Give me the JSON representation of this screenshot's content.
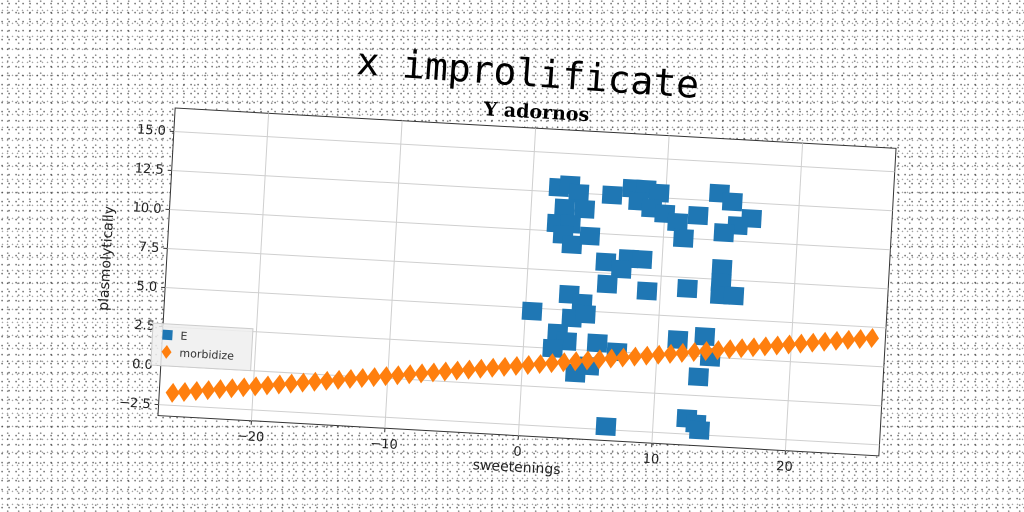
{
  "figure_title": "x improlificate",
  "chart_data": {
    "type": "scatter",
    "title": "Y adornos",
    "xlabel": "sweetenings",
    "ylabel": "plasmolytically",
    "xlim": [
      -27,
      27
    ],
    "ylim": [
      -3.2,
      16.5
    ],
    "xticks": [
      -20,
      -10,
      0,
      10,
      20
    ],
    "yticks": [
      -2.5,
      0.0,
      2.5,
      5.0,
      7.5,
      10.0,
      12.5,
      15.0
    ],
    "ytick_labels": [
      "−2.5",
      "0.0",
      "2.5",
      "5.0",
      "7.5",
      "10.0",
      "12.5",
      "15.0"
    ],
    "xtick_labels": [
      "−20",
      "−10",
      "0",
      "10",
      "20"
    ],
    "grid": true,
    "legend_position": "lower-left",
    "series": [
      {
        "name": "E",
        "marker": "square",
        "color": "#1f77b4",
        "points": [
          [
            0.5,
            4.8
          ],
          [
            2,
            12.8
          ],
          [
            2.8,
            13
          ],
          [
            3.5,
            12.5
          ],
          [
            2.5,
            11.5
          ],
          [
            4,
            11.5
          ],
          [
            2,
            10.5
          ],
          [
            3,
            10.5
          ],
          [
            2.5,
            9.8
          ],
          [
            3.2,
            9.2
          ],
          [
            4.5,
            9.8
          ],
          [
            6,
            12.5
          ],
          [
            7.5,
            13
          ],
          [
            8.5,
            13
          ],
          [
            9.5,
            12.8
          ],
          [
            8,
            12.2
          ],
          [
            9,
            11.8
          ],
          [
            10,
            11.5
          ],
          [
            11,
            11
          ],
          [
            12.5,
            11.5
          ],
          [
            11.5,
            10
          ],
          [
            14,
            13
          ],
          [
            15,
            12.5
          ],
          [
            16.5,
            11.5
          ],
          [
            15.5,
            11
          ],
          [
            14.5,
            10.5
          ],
          [
            5.8,
            8.2
          ],
          [
            7.5,
            8.5
          ],
          [
            8.5,
            8.5
          ],
          [
            7,
            7.8
          ],
          [
            6,
            6.8
          ],
          [
            9,
            6.5
          ],
          [
            12,
            6.8
          ],
          [
            14.5,
            8.2
          ],
          [
            14.5,
            7.3
          ],
          [
            14.5,
            6.5
          ],
          [
            15.5,
            6.5
          ],
          [
            3.2,
            6
          ],
          [
            4.2,
            5.5
          ],
          [
            3.5,
            4.5
          ],
          [
            4.5,
            4.8
          ],
          [
            2.5,
            3.5
          ],
          [
            3.2,
            3
          ],
          [
            2.2,
            2.5
          ],
          [
            5.5,
            3
          ],
          [
            7,
            2.5
          ],
          [
            11.5,
            3.5
          ],
          [
            13.5,
            3.8
          ],
          [
            14,
            2.5
          ],
          [
            13.2,
            1.2
          ],
          [
            5,
            1.5
          ],
          [
            4,
            1
          ],
          [
            12.5,
            -1.5
          ],
          [
            13.2,
            -1.8
          ],
          [
            13.5,
            -2.2
          ],
          [
            6.5,
            -2.3
          ]
        ]
      },
      {
        "name": "morbidize",
        "marker": "diamond",
        "color": "#ff7f0e",
        "line": {
          "x_start": -26,
          "x_end": 26,
          "slope": 0.1154,
          "intercept": 1.3,
          "count": 60
        }
      }
    ]
  }
}
